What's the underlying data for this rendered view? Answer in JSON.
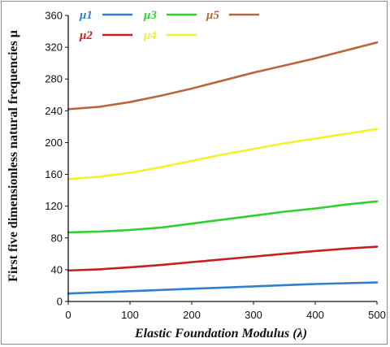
{
  "chart_data": {
    "type": "line",
    "xlabel": "Elastic Foundation Modulus (λ)",
    "ylabel": "First five dimensionless natural frequencies μ",
    "xlim": [
      0,
      500
    ],
    "ylim": [
      0,
      360
    ],
    "xticks": [
      "0",
      "100",
      "200",
      "300",
      "400",
      "500"
    ],
    "yticks": [
      "0",
      "40",
      "80",
      "120",
      "160",
      "200",
      "240",
      "280",
      "320",
      "360"
    ],
    "grid": false,
    "legend": "top-left",
    "x": [
      0,
      50,
      100,
      150,
      200,
      250,
      300,
      350,
      400,
      450,
      500
    ],
    "series": [
      {
        "name": "μ1",
        "color": "#2f7fd0",
        "values": [
          10,
          11.5,
          13,
          14.5,
          16,
          17.5,
          19,
          20.5,
          22,
          23,
          24
        ]
      },
      {
        "name": "μ2",
        "color": "#c82020",
        "values": [
          39,
          40.5,
          43,
          46,
          49.5,
          53,
          56.5,
          60,
          63.5,
          66.5,
          69
        ]
      },
      {
        "name": "μ3",
        "color": "#2ed12e",
        "values": [
          87,
          88,
          90,
          93,
          98,
          103,
          108,
          113,
          117,
          122,
          126
        ]
      },
      {
        "name": "μ4",
        "color": "#f2f22a",
        "values": [
          154,
          157,
          162,
          169,
          177,
          185,
          192,
          199,
          205,
          211,
          217
        ]
      },
      {
        "name": "μ5",
        "color": "#b8663a",
        "values": [
          242,
          245,
          251,
          259,
          268,
          278,
          288,
          297,
          306,
          316,
          326
        ]
      }
    ]
  }
}
